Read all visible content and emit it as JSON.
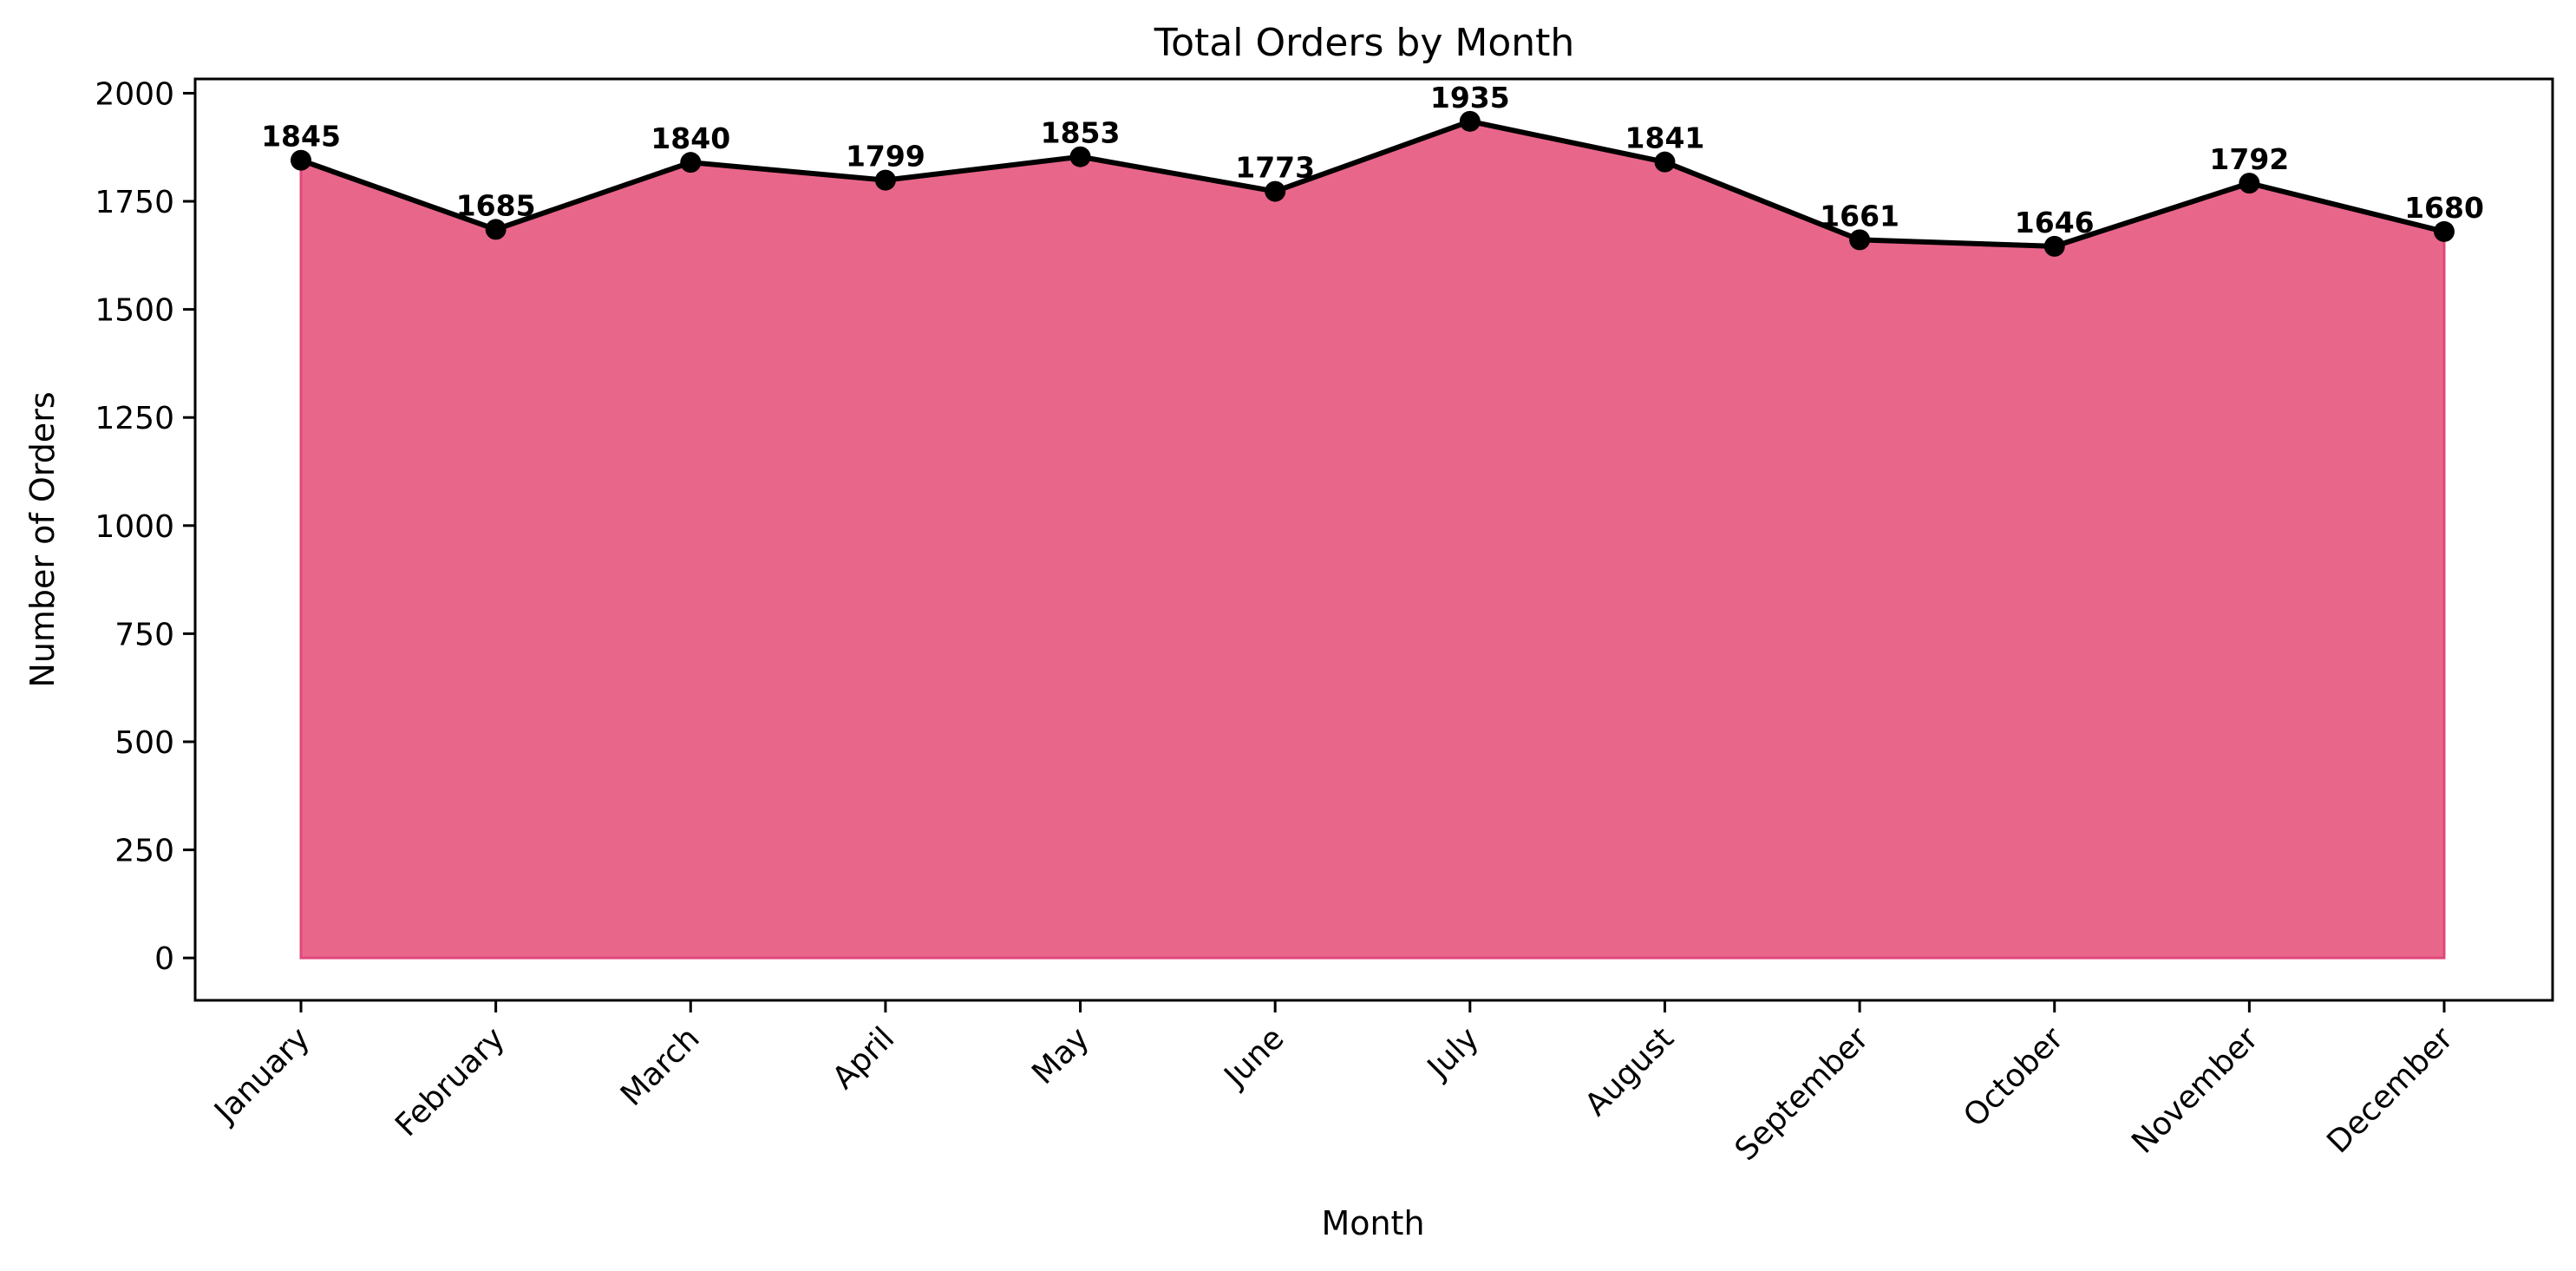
{
  "chart_data": {
    "type": "area",
    "title": "Total Orders by Month",
    "xlabel": "Month",
    "ylabel": "Number of Orders",
    "categories": [
      "January",
      "February",
      "March",
      "April",
      "May",
      "June",
      "July",
      "August",
      "September",
      "October",
      "November",
      "December"
    ],
    "values": [
      1845,
      1685,
      1840,
      1799,
      1853,
      1773,
      1935,
      1841,
      1661,
      1646,
      1792,
      1680
    ],
    "ylim": [
      -98,
      2033
    ],
    "yticks": [
      0,
      250,
      500,
      750,
      1000,
      1250,
      1500,
      1750,
      2000
    ],
    "grid": false,
    "legend": "none",
    "colors": {
      "fill": "#e8668a",
      "fill_edge": "#e0487a",
      "line": "#000000",
      "marker": "#000000"
    }
  }
}
